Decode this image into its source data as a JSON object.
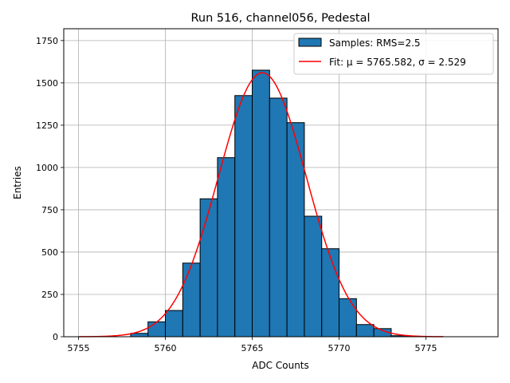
{
  "chart_data": {
    "type": "bar",
    "title": "Run 516, channel056, Pedestal",
    "xlabel": "ADC Counts",
    "ylabel": "Entries",
    "xlim": [
      5754.15,
      5779.15
    ],
    "ylim": [
      0,
      1820
    ],
    "x_ticks": [
      5755,
      5760,
      5765,
      5770,
      5775
    ],
    "y_ticks": [
      0,
      250,
      500,
      750,
      1000,
      1250,
      1500,
      1750
    ],
    "grid": true,
    "legend_position": "top-right",
    "series": [
      {
        "name": "Samples: RMS=2.5",
        "kind": "histogram",
        "color": "#1f77b4",
        "edge_color": "#000000",
        "bins": [
          {
            "x0": 5757,
            "x1": 5758,
            "value": 0
          },
          {
            "x0": 5758,
            "x1": 5759,
            "value": 20
          },
          {
            "x0": 5759,
            "x1": 5760,
            "value": 88
          },
          {
            "x0": 5760,
            "x1": 5761,
            "value": 155
          },
          {
            "x0": 5761,
            "x1": 5762,
            "value": 435
          },
          {
            "x0": 5762,
            "x1": 5763,
            "value": 815
          },
          {
            "x0": 5763,
            "x1": 5764,
            "value": 1058
          },
          {
            "x0": 5764,
            "x1": 5765,
            "value": 1425
          },
          {
            "x0": 5765,
            "x1": 5766,
            "value": 1575
          },
          {
            "x0": 5766,
            "x1": 5767,
            "value": 1410
          },
          {
            "x0": 5767,
            "x1": 5768,
            "value": 1265
          },
          {
            "x0": 5768,
            "x1": 5769,
            "value": 712
          },
          {
            "x0": 5769,
            "x1": 5770,
            "value": 520
          },
          {
            "x0": 5770,
            "x1": 5771,
            "value": 225
          },
          {
            "x0": 5771,
            "x1": 5772,
            "value": 72
          },
          {
            "x0": 5772,
            "x1": 5773,
            "value": 48
          },
          {
            "x0": 5773,
            "x1": 5774,
            "value": 6
          }
        ]
      },
      {
        "name": "Fit: μ = 5765.582, σ = 2.529",
        "kind": "gaussian_fit",
        "color": "#ff0000",
        "mu": 5765.582,
        "sigma": 2.529,
        "amplitude": 1560,
        "x_range": [
          5755,
          5776
        ]
      }
    ]
  }
}
